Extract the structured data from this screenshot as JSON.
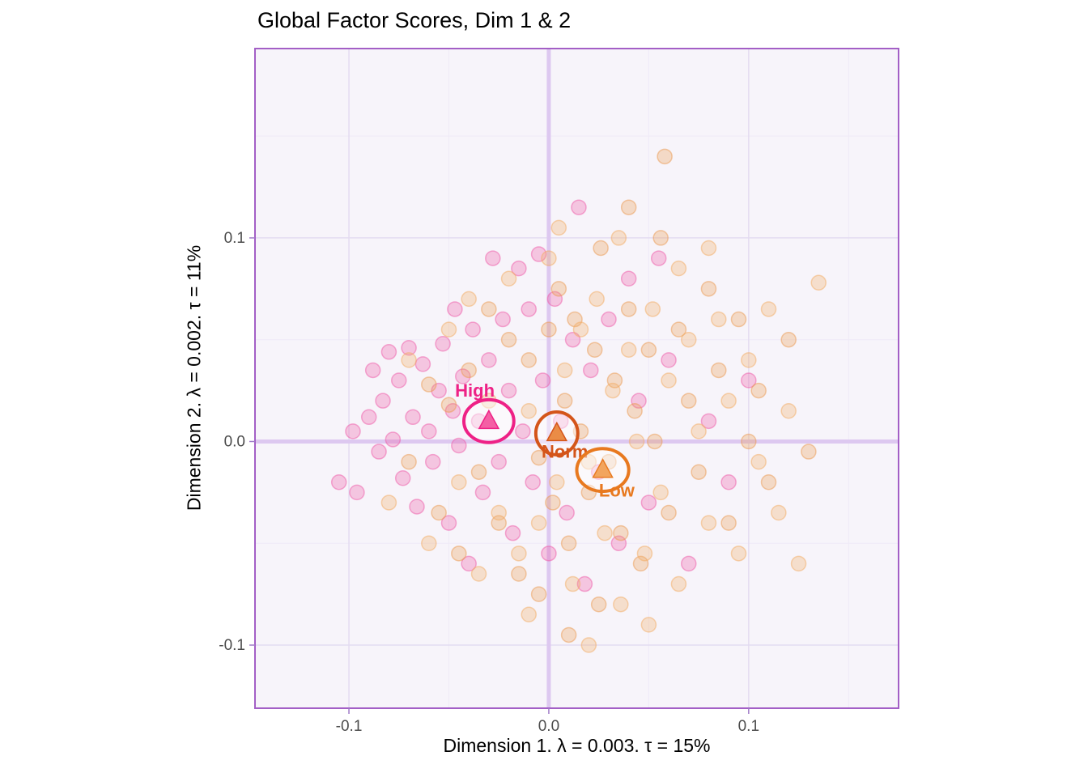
{
  "chart_data": {
    "type": "scatter",
    "title": "Global Factor Scores, Dim 1 & 2",
    "xlabel": "Dimension 1.  λ = 0.003.  τ = 15%",
    "ylabel": "Dimension 2.  λ = 0.002.  τ = 11%",
    "xlim": [
      -0.147,
      0.175
    ],
    "ylim": [
      -0.131,
      0.193
    ],
    "xticks": [
      -0.1,
      0.0,
      0.1
    ],
    "xtick_labels": [
      "-0.1",
      "0.0",
      "0.1"
    ],
    "yticks": [
      -0.1,
      0.0,
      0.1
    ],
    "ytick_labels": [
      "-0.1",
      "0.0",
      "0.1"
    ],
    "xticks_minor": [
      -0.05,
      0.05,
      0.15
    ],
    "yticks_minor": [
      -0.05,
      0.05,
      0.15
    ],
    "grid": true,
    "legend_position": "none",
    "origin": [
      0.0,
      0.0
    ],
    "colors": {
      "panel_bg": "#f7f4fa",
      "grid_major": "#e4dcf1",
      "grid_minor": "#efeaf7",
      "zero_line": "#ddc8f0",
      "border": "#a35fc6",
      "tick": "#a07cc8",
      "tick_label": "#4d4d4d"
    },
    "series": [
      {
        "name": "High",
        "color": "#ef5aa7",
        "points": [
          [
            -0.105,
            -0.02
          ],
          [
            -0.098,
            0.005
          ],
          [
            -0.096,
            -0.025
          ],
          [
            -0.09,
            0.012
          ],
          [
            -0.088,
            0.035
          ],
          [
            -0.085,
            -0.005
          ],
          [
            -0.083,
            0.02
          ],
          [
            -0.08,
            0.044
          ],
          [
            -0.078,
            0.001
          ],
          [
            -0.075,
            0.03
          ],
          [
            -0.073,
            -0.018
          ],
          [
            -0.07,
            0.046
          ],
          [
            -0.068,
            0.012
          ],
          [
            -0.066,
            -0.032
          ],
          [
            -0.063,
            0.038
          ],
          [
            -0.06,
            0.005
          ],
          [
            -0.058,
            -0.01
          ],
          [
            -0.055,
            0.025
          ],
          [
            -0.053,
            0.048
          ],
          [
            -0.05,
            -0.04
          ],
          [
            -0.048,
            0.015
          ],
          [
            -0.047,
            0.065
          ],
          [
            -0.045,
            -0.002
          ],
          [
            -0.043,
            0.032
          ],
          [
            -0.04,
            -0.06
          ],
          [
            -0.038,
            0.055
          ],
          [
            -0.035,
            0.01
          ],
          [
            -0.033,
            -0.025
          ],
          [
            -0.03,
            0.04
          ],
          [
            -0.028,
            0.09
          ],
          [
            -0.025,
            -0.01
          ],
          [
            -0.023,
            0.06
          ],
          [
            -0.02,
            0.025
          ],
          [
            -0.018,
            -0.045
          ],
          [
            -0.015,
            0.085
          ],
          [
            -0.013,
            0.005
          ],
          [
            -0.01,
            0.065
          ],
          [
            -0.008,
            -0.02
          ],
          [
            -0.005,
            0.092
          ],
          [
            -0.003,
            0.03
          ],
          [
            0.0,
            -0.055
          ],
          [
            0.003,
            0.07
          ],
          [
            0.006,
            0.01
          ],
          [
            0.009,
            -0.035
          ],
          [
            0.012,
            0.05
          ],
          [
            0.015,
            0.115
          ],
          [
            0.018,
            -0.07
          ],
          [
            0.021,
            0.035
          ],
          [
            0.025,
            -0.015
          ],
          [
            0.03,
            0.06
          ],
          [
            0.035,
            -0.05
          ],
          [
            0.04,
            0.08
          ],
          [
            0.045,
            0.02
          ],
          [
            0.05,
            -0.03
          ],
          [
            0.055,
            0.09
          ],
          [
            0.06,
            0.04
          ],
          [
            0.07,
            -0.06
          ],
          [
            0.08,
            0.01
          ],
          [
            0.09,
            -0.02
          ],
          [
            0.1,
            0.03
          ]
        ]
      },
      {
        "name": "Norm",
        "color": "#eb9a50",
        "points": [
          [
            -0.07,
            -0.01
          ],
          [
            -0.06,
            0.028
          ],
          [
            -0.055,
            -0.035
          ],
          [
            -0.05,
            0.018
          ],
          [
            -0.045,
            -0.055
          ],
          [
            -0.04,
            0.035
          ],
          [
            -0.035,
            -0.015
          ],
          [
            -0.03,
            0.065
          ],
          [
            -0.025,
            -0.04
          ],
          [
            -0.02,
            0.05
          ],
          [
            -0.015,
            -0.065
          ],
          [
            -0.01,
            0.04
          ],
          [
            -0.005,
            -0.008
          ],
          [
            0.0,
            0.055
          ],
          [
            0.002,
            -0.03
          ],
          [
            0.005,
            0.075
          ],
          [
            0.008,
            0.02
          ],
          [
            0.01,
            -0.05
          ],
          [
            0.013,
            0.06
          ],
          [
            0.016,
            0.005
          ],
          [
            0.02,
            -0.025
          ],
          [
            0.023,
            0.045
          ],
          [
            0.026,
            0.095
          ],
          [
            0.03,
            -0.01
          ],
          [
            0.033,
            0.03
          ],
          [
            0.036,
            -0.045
          ],
          [
            0.04,
            0.065
          ],
          [
            0.043,
            0.015
          ],
          [
            0.046,
            -0.06
          ],
          [
            0.05,
            0.045
          ],
          [
            0.053,
            0.0
          ],
          [
            0.056,
            0.1
          ],
          [
            0.06,
            -0.035
          ],
          [
            0.065,
            0.055
          ],
          [
            0.07,
            0.02
          ],
          [
            0.075,
            -0.015
          ],
          [
            0.08,
            0.075
          ],
          [
            0.085,
            0.035
          ],
          [
            0.09,
            -0.04
          ],
          [
            0.095,
            0.06
          ],
          [
            0.1,
            0.0
          ],
          [
            0.105,
            0.025
          ],
          [
            0.11,
            -0.02
          ],
          [
            0.12,
            0.05
          ],
          [
            0.13,
            -0.005
          ],
          [
            0.058,
            0.14
          ],
          [
            0.04,
            0.115
          ],
          [
            0.025,
            -0.08
          ],
          [
            0.01,
            -0.095
          ],
          [
            -0.005,
            -0.075
          ]
        ]
      },
      {
        "name": "Low",
        "color": "#f3ab62",
        "points": [
          [
            -0.08,
            -0.03
          ],
          [
            -0.07,
            0.04
          ],
          [
            -0.06,
            -0.05
          ],
          [
            -0.05,
            0.055
          ],
          [
            -0.045,
            -0.02
          ],
          [
            -0.04,
            0.07
          ],
          [
            -0.035,
            -0.065
          ],
          [
            -0.03,
            0.02
          ],
          [
            -0.025,
            -0.035
          ],
          [
            -0.02,
            0.08
          ],
          [
            -0.015,
            -0.055
          ],
          [
            -0.01,
            0.015
          ],
          [
            -0.005,
            -0.04
          ],
          [
            0.0,
            0.09
          ],
          [
            0.004,
            -0.02
          ],
          [
            0.008,
            0.035
          ],
          [
            0.012,
            -0.07
          ],
          [
            0.016,
            0.055
          ],
          [
            0.02,
            -0.01
          ],
          [
            0.024,
            0.07
          ],
          [
            0.028,
            -0.045
          ],
          [
            0.032,
            0.025
          ],
          [
            0.036,
            -0.08
          ],
          [
            0.04,
            0.045
          ],
          [
            0.044,
            0.0
          ],
          [
            0.048,
            -0.055
          ],
          [
            0.052,
            0.065
          ],
          [
            0.056,
            -0.025
          ],
          [
            0.06,
            0.03
          ],
          [
            0.065,
            -0.07
          ],
          [
            0.07,
            0.05
          ],
          [
            0.075,
            0.005
          ],
          [
            0.08,
            -0.04
          ],
          [
            0.085,
            0.06
          ],
          [
            0.09,
            0.02
          ],
          [
            0.095,
            -0.055
          ],
          [
            0.1,
            0.04
          ],
          [
            0.105,
            -0.01
          ],
          [
            0.11,
            0.065
          ],
          [
            0.115,
            -0.035
          ],
          [
            0.12,
            0.015
          ],
          [
            0.125,
            -0.06
          ],
          [
            0.135,
            0.078
          ],
          [
            0.05,
            -0.09
          ],
          [
            0.035,
            0.1
          ],
          [
            0.02,
            -0.1
          ],
          [
            0.005,
            0.105
          ],
          [
            -0.01,
            -0.085
          ],
          [
            0.065,
            0.085
          ],
          [
            0.08,
            0.095
          ]
        ]
      }
    ],
    "means": [
      {
        "name": "High",
        "x": -0.03,
        "y": 0.01,
        "rx": 0.0125,
        "ry": 0.0105,
        "color": "#ee2186",
        "fill": "#f45fa5",
        "label_dx": -0.007,
        "label_dy": 0.012
      },
      {
        "name": "Norm",
        "x": 0.004,
        "y": 0.004,
        "rx": 0.0105,
        "ry": 0.0105,
        "color": "#d4551a",
        "fill": "#ea8c46",
        "label_dx": 0.004,
        "label_dy": -0.012
      },
      {
        "name": "Low",
        "x": 0.027,
        "y": -0.014,
        "rx": 0.013,
        "ry": 0.0105,
        "color": "#e8791f",
        "fill": "#f2a55e",
        "label_dx": 0.007,
        "label_dy": -0.013
      }
    ]
  }
}
